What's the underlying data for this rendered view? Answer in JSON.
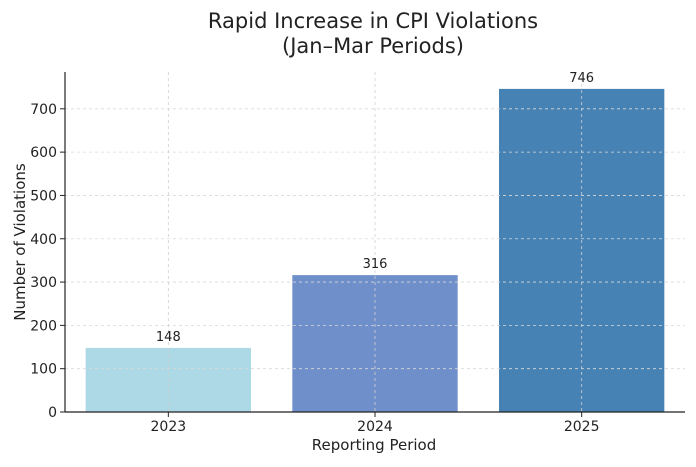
{
  "chart_data": {
    "type": "bar",
    "title": [
      "Rapid Increase in CPI Violations",
      "(Jan–Mar Periods)"
    ],
    "xlabel": "Reporting Period",
    "ylabel": "Number of Violations",
    "categories": [
      "2023",
      "2024",
      "2025"
    ],
    "values": [
      148,
      316,
      746
    ],
    "data_labels": [
      "148",
      "316",
      "746"
    ],
    "bar_colors": [
      "#add8e6",
      "#6f8fca",
      "#4682b4"
    ],
    "ylim": [
      0,
      785
    ],
    "yticks": [
      0,
      100,
      200,
      300,
      400,
      500,
      600,
      700
    ],
    "grid": true,
    "legend": "none"
  }
}
